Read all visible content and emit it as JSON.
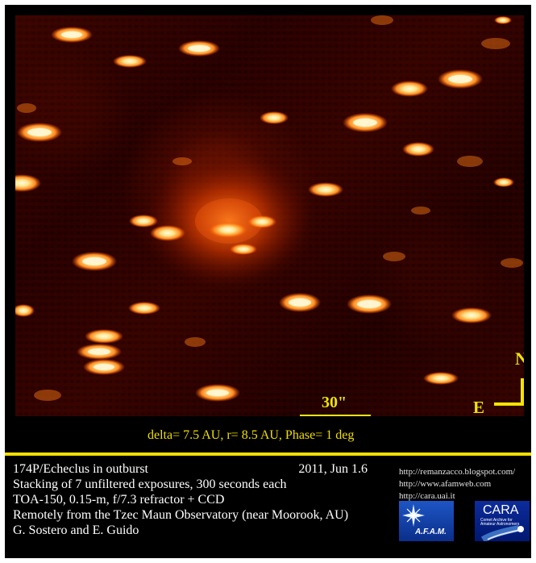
{
  "image": {
    "scale_label": "30\"",
    "compass": {
      "north": "N",
      "east": "E"
    }
  },
  "observation_meta": "delta= 7.5 AU, r= 8.5 AU, Phase= 1 deg",
  "caption": {
    "object": "174P/Echeclus  in outburst",
    "date": "2011, Jun 1.6",
    "lines": [
      "Stacking of 7 unfiltered exposures, 300 seconds each",
      "TOA-150, 0.15-m, f/7.3 refractor + CCD",
      "Remotely from the Tzec Maun Observatory (near Moorook, AU)",
      "G. Sostero and E. Guido"
    ]
  },
  "links": [
    "http://remanzacco.blogspot.com/",
    "http://www.afamweb.com",
    "http://cara.uai.it"
  ],
  "logos": {
    "afam": "A.F.A.M.",
    "cara": "CARA",
    "cara_subtitle": "Comet Archive for Amateur Astronomers"
  },
  "colors": {
    "frame": "#000000",
    "accent": "#f1df00",
    "caption_text": "#ffffff"
  }
}
